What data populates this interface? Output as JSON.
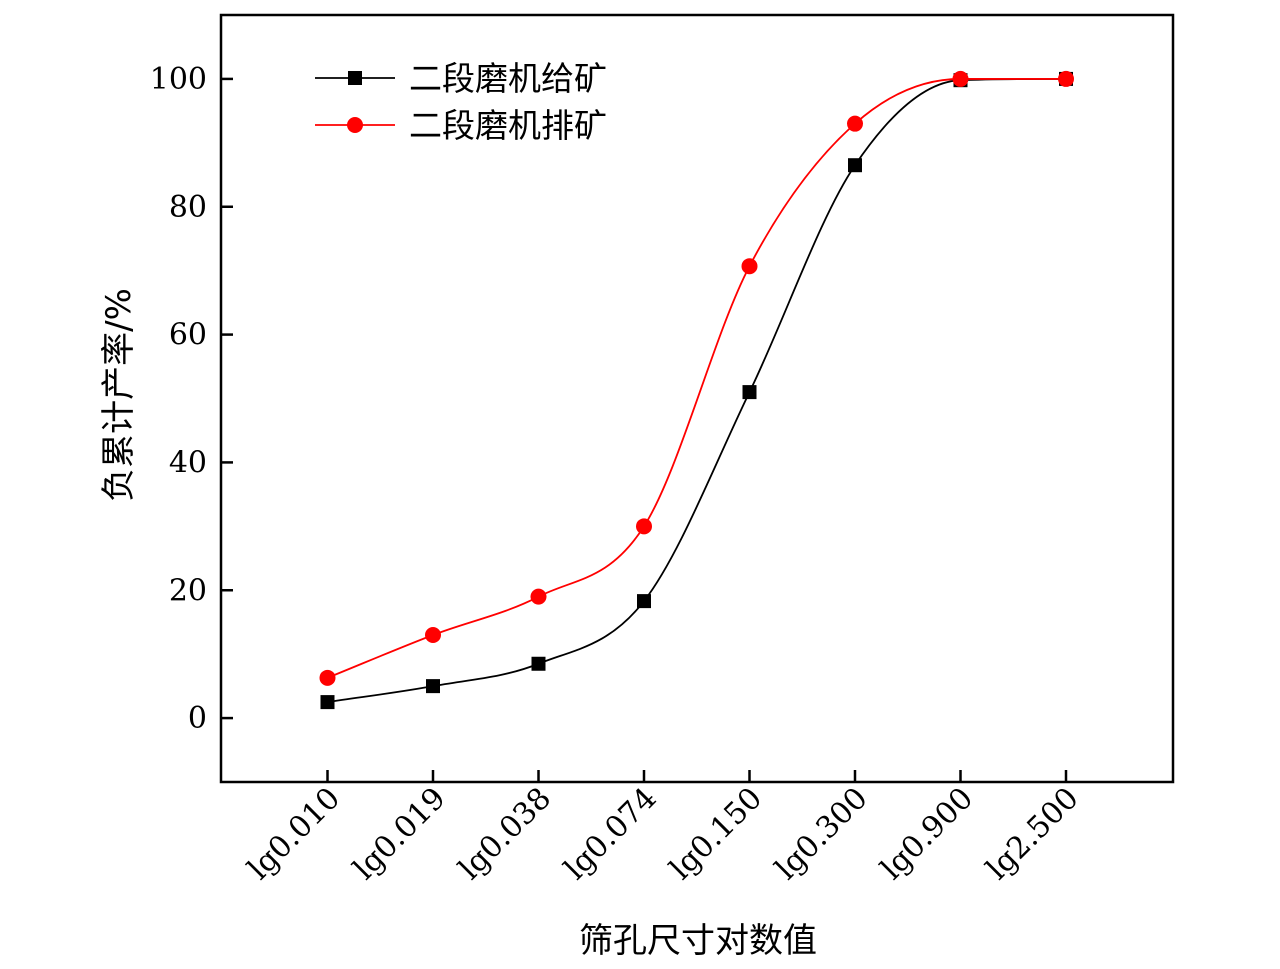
{
  "chart_data": {
    "type": "line",
    "title": "",
    "xlabel": "筛孔尺寸对数值",
    "ylabel": "负累计产率/%",
    "categories": [
      "lg0.010",
      "lg0.019",
      "lg0.038",
      "lg0.074",
      "lg0.150",
      "lg0.300",
      "lg0.900",
      "lg2.500"
    ],
    "ylim": [
      -10,
      110
    ],
    "yticks": [
      "0",
      "20",
      "40",
      "60",
      "80",
      "100"
    ],
    "grid": false,
    "legend_position": "top-left",
    "series": [
      {
        "name": "二段磨机给矿",
        "color": "#000000",
        "marker": "square",
        "values": [
          2.5,
          5.0,
          8.5,
          18.3,
          51.0,
          86.5,
          99.8,
          100.0
        ]
      },
      {
        "name": "二段磨机排矿",
        "color": "#ff0000",
        "marker": "circle",
        "values": [
          6.3,
          13.0,
          19.0,
          30.0,
          70.7,
          93.0,
          100.0,
          100.0
        ]
      }
    ]
  }
}
